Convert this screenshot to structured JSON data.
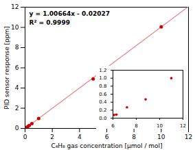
{
  "chart_data": [
    {
      "type": "scatter",
      "x": [
        0.1,
        0.2,
        0.3,
        0.5,
        1.0,
        5.0,
        10.0
      ],
      "values": [
        0.08,
        0.18,
        0.28,
        0.48,
        0.98,
        4.9,
        10.05
      ],
      "color": "#cc0000",
      "fit": {
        "slope": 1.00664,
        "intercept": -0.02027,
        "color": "#f08080"
      },
      "annotations": [
        "y = 1.00664x - 0.02027",
        "R² = 0.9999"
      ],
      "xlabel": "C₄H₈ gas concentration [μmol / mol]",
      "ylabel": "PID sensor response [ppm]",
      "xlim": [
        0,
        12
      ],
      "ylim": [
        0,
        12
      ],
      "xticks": [
        0,
        2,
        4,
        6,
        8,
        10,
        12
      ],
      "yticks": [
        0,
        2,
        4,
        6,
        8,
        10,
        12
      ],
      "grid": false
    },
    {
      "type": "scatter",
      "x": [
        6.1,
        6.3,
        7.2,
        8.8,
        11.0
      ],
      "values": [
        0.08,
        0.09,
        0.27,
        0.47,
        1.0
      ],
      "color": "#cc0000",
      "xlim": [
        6.0,
        12.0
      ],
      "ylim": [
        0.0,
        1.2
      ],
      "xticks": [
        6,
        8,
        10,
        12
      ],
      "yticks": [
        {
          "value": 0.0,
          "label": "0.0"
        },
        0.2,
        0.4,
        0.6,
        0.8,
        {
          "value": 1.0,
          "label": "1.0"
        },
        1.2
      ],
      "grid": false
    }
  ]
}
